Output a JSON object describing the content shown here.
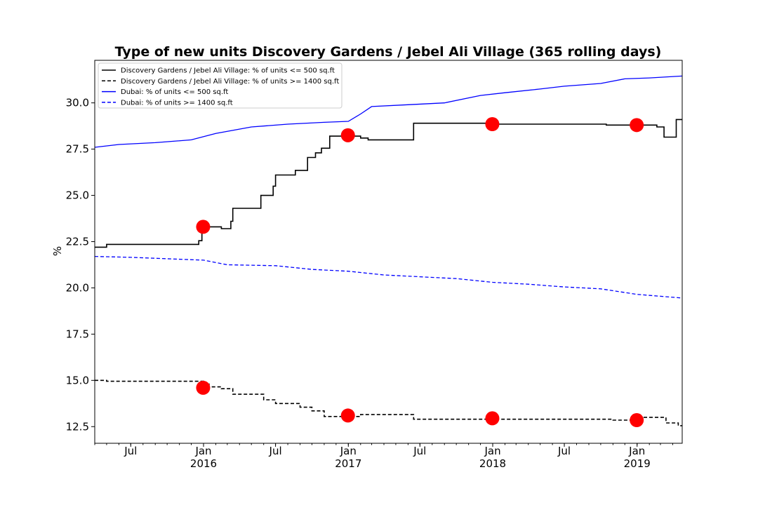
{
  "chart_data": {
    "type": "line",
    "title": "Type of new units Discovery Gardens / Jebel Ali Village (365 rolling days)",
    "xlabel": "",
    "ylabel": "%",
    "ylim": [
      11.6,
      32.3
    ],
    "xlim": [
      "2015-04-01",
      "2019-04-25"
    ],
    "yticks": [
      "12.5",
      "15.0",
      "17.5",
      "20.0",
      "22.5",
      "25.0",
      "27.5",
      "30.0"
    ],
    "xticks": [
      {
        "date": "2015-07-01",
        "label": "Jul",
        "sublabel": ""
      },
      {
        "date": "2016-01-01",
        "label": "Jan",
        "sublabel": "2016"
      },
      {
        "date": "2016-07-01",
        "label": "Jul",
        "sublabel": ""
      },
      {
        "date": "2017-01-01",
        "label": "Jan",
        "sublabel": "2017"
      },
      {
        "date": "2017-07-01",
        "label": "Jul",
        "sublabel": ""
      },
      {
        "date": "2018-01-01",
        "label": "Jan",
        "sublabel": "2018"
      },
      {
        "date": "2018-07-01",
        "label": "Jul",
        "sublabel": ""
      },
      {
        "date": "2019-01-01",
        "label": "Jan",
        "sublabel": "2019"
      }
    ],
    "grid": false,
    "legend_position": "top-left",
    "series": [
      {
        "name": "Discovery Gardens / Jebel Ali Village: % of units <= 500 sq.ft",
        "color": "#000000",
        "dash": "solid",
        "step": true,
        "points": [
          [
            "2015-04-01",
            22.2
          ],
          [
            "2015-05-01",
            22.35
          ],
          [
            "2015-10-01",
            22.35
          ],
          [
            "2015-12-20",
            22.55
          ],
          [
            "2015-12-28",
            23.3
          ],
          [
            "2016-02-15",
            23.2
          ],
          [
            "2016-03-10",
            23.6
          ],
          [
            "2016-03-15",
            24.3
          ],
          [
            "2016-05-25",
            25.0
          ],
          [
            "2016-06-25",
            25.5
          ],
          [
            "2016-07-01",
            26.1
          ],
          [
            "2016-08-20",
            26.35
          ],
          [
            "2016-09-20",
            27.05
          ],
          [
            "2016-10-10",
            27.3
          ],
          [
            "2016-10-25",
            27.55
          ],
          [
            "2016-11-15",
            28.2
          ],
          [
            "2017-01-01",
            28.2
          ],
          [
            "2017-02-01",
            28.1
          ],
          [
            "2017-02-20",
            28.0
          ],
          [
            "2017-06-15",
            28.9
          ],
          [
            "2017-08-01",
            28.9
          ],
          [
            "2017-12-15",
            28.85
          ],
          [
            "2018-08-15",
            28.85
          ],
          [
            "2018-10-15",
            28.8
          ],
          [
            "2019-02-20",
            28.7
          ],
          [
            "2019-03-10",
            28.15
          ],
          [
            "2019-04-10",
            29.1
          ],
          [
            "2019-04-25",
            29.1
          ]
        ]
      },
      {
        "name": "Discovery Gardens / Jebel Ali Village: % of units >= 1400 sq.ft",
        "color": "#000000",
        "dash": "dashed",
        "step": true,
        "points": [
          [
            "2015-04-01",
            15.0
          ],
          [
            "2015-05-01",
            14.95
          ],
          [
            "2015-12-15",
            14.95
          ],
          [
            "2016-01-01",
            14.8
          ],
          [
            "2016-01-15",
            14.65
          ],
          [
            "2016-02-15",
            14.55
          ],
          [
            "2016-03-15",
            14.25
          ],
          [
            "2016-06-01",
            13.95
          ],
          [
            "2016-07-01",
            13.75
          ],
          [
            "2016-09-01",
            13.55
          ],
          [
            "2016-10-01",
            13.35
          ],
          [
            "2016-11-01",
            13.05
          ],
          [
            "2017-02-01",
            13.15
          ],
          [
            "2017-06-15",
            12.9
          ],
          [
            "2018-11-01",
            12.85
          ],
          [
            "2019-01-01",
            13.0
          ],
          [
            "2019-03-15",
            12.7
          ],
          [
            "2019-04-15",
            12.55
          ],
          [
            "2019-04-25",
            12.55
          ]
        ]
      },
      {
        "name": "Dubai: % of units <= 500 sq.ft",
        "color": "#0000ff",
        "dash": "solid",
        "step": false,
        "points": [
          [
            "2015-04-01",
            27.6
          ],
          [
            "2015-06-01",
            27.75
          ],
          [
            "2015-09-01",
            27.85
          ],
          [
            "2015-12-01",
            28.0
          ],
          [
            "2016-02-01",
            28.35
          ],
          [
            "2016-05-01",
            28.7
          ],
          [
            "2016-08-01",
            28.85
          ],
          [
            "2016-11-01",
            28.95
          ],
          [
            "2017-01-01",
            29.0
          ],
          [
            "2017-02-01",
            29.4
          ],
          [
            "2017-03-01",
            29.8
          ],
          [
            "2017-06-01",
            29.9
          ],
          [
            "2017-09-01",
            30.0
          ],
          [
            "2017-12-01",
            30.4
          ],
          [
            "2018-02-01",
            30.55
          ],
          [
            "2018-05-01",
            30.75
          ],
          [
            "2018-07-01",
            30.9
          ],
          [
            "2018-10-01",
            31.05
          ],
          [
            "2018-12-01",
            31.3
          ],
          [
            "2019-02-01",
            31.35
          ],
          [
            "2019-04-25",
            31.45
          ]
        ]
      },
      {
        "name": "Dubai: % of units >= 1400 sq.ft",
        "color": "#0000ff",
        "dash": "dashed",
        "step": false,
        "points": [
          [
            "2015-04-01",
            21.7
          ],
          [
            "2015-07-01",
            21.65
          ],
          [
            "2016-01-01",
            21.5
          ],
          [
            "2016-03-01",
            21.25
          ],
          [
            "2016-07-01",
            21.2
          ],
          [
            "2016-10-01",
            21.0
          ],
          [
            "2017-01-01",
            20.9
          ],
          [
            "2017-04-01",
            20.7
          ],
          [
            "2017-07-01",
            20.6
          ],
          [
            "2017-10-01",
            20.5
          ],
          [
            "2018-01-01",
            20.3
          ],
          [
            "2018-04-01",
            20.2
          ],
          [
            "2018-07-01",
            20.05
          ],
          [
            "2018-10-01",
            19.95
          ],
          [
            "2019-01-01",
            19.65
          ],
          [
            "2019-04-25",
            19.45
          ]
        ]
      }
    ],
    "markers": {
      "color": "#ff0000",
      "points": [
        [
          "2015-12-31",
          23.3
        ],
        [
          "2016-12-31",
          28.25
        ],
        [
          "2017-12-31",
          28.85
        ],
        [
          "2018-12-31",
          28.8
        ],
        [
          "2015-12-31",
          14.6
        ],
        [
          "2016-12-31",
          13.1
        ],
        [
          "2017-12-31",
          12.95
        ],
        [
          "2018-12-31",
          12.85
        ]
      ]
    }
  }
}
